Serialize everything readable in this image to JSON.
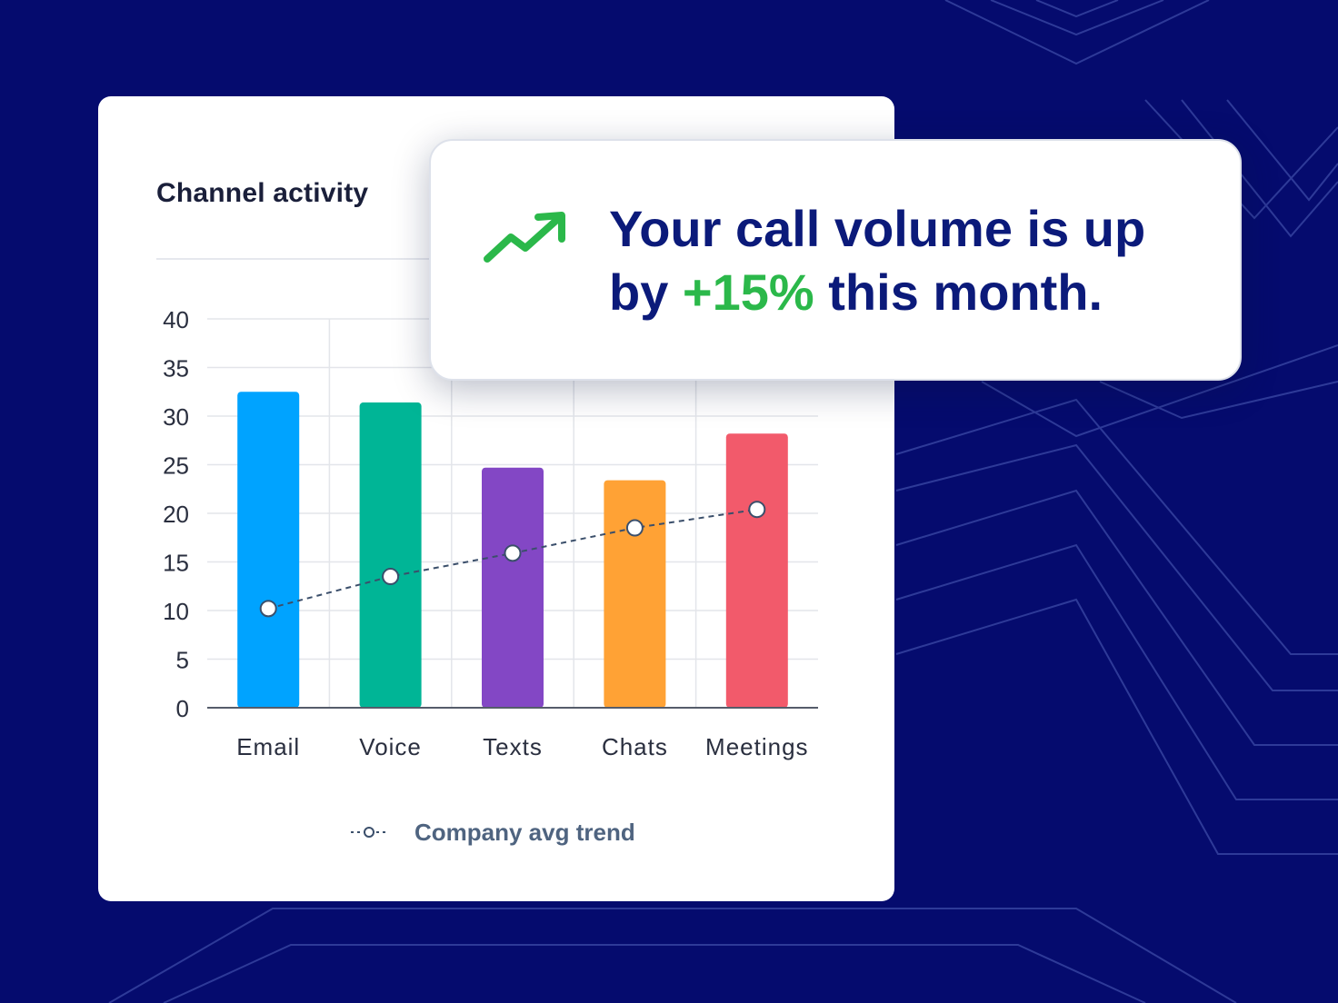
{
  "card": {
    "title": "Channel activity"
  },
  "chart_data": {
    "type": "bar",
    "categories": [
      "Email",
      "Voice",
      "Texts",
      "Chats",
      "Meetings"
    ],
    "series": [
      {
        "values": [
          32.5,
          31.4,
          24.7,
          23.4,
          28.2
        ],
        "colors": [
          "#00a3ff",
          "#00b596",
          "#8347c5",
          "#ffa235",
          "#f25a6b"
        ]
      },
      {
        "name": "Company avg trend",
        "type": "line",
        "style": "dashed",
        "values": [
          10.2,
          13.5,
          15.9,
          18.5,
          20.4
        ]
      }
    ],
    "yticks": [
      0,
      5,
      10,
      15,
      20,
      25,
      30,
      35,
      40
    ],
    "ylim": [
      0,
      40
    ],
    "grid": true,
    "legend": "bottom"
  },
  "notification": {
    "line1": "Your call volume is up",
    "line2_prefix": "by ",
    "highlight": "+15%",
    "line2_suffix": " this month.",
    "icon": "trending-up-icon",
    "highlight_color": "#2bb84a",
    "text_color": "#0b1a7a"
  },
  "colors": {
    "background": "#050b6e",
    "trend_line": "#3b4f6b"
  }
}
